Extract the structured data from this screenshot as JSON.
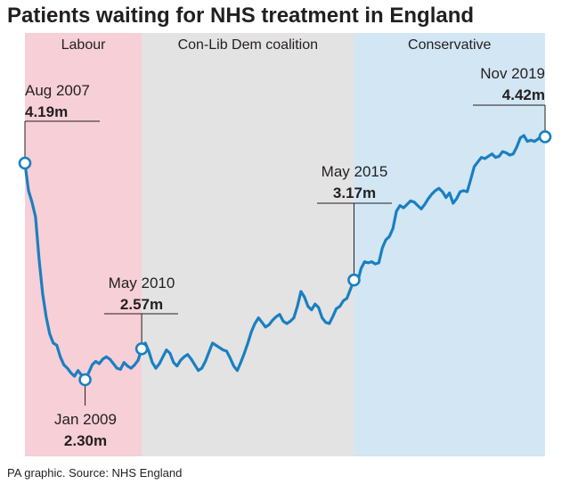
{
  "title": "Patients waiting for NHS treatment in England",
  "source": "PA graphic. Source: NHS England",
  "colors": {
    "line": "#1a7fc1",
    "text": "#231f20",
    "marker_fill": "#ffffff"
  },
  "chart_data": {
    "type": "line",
    "title": "Patients waiting for NHS treatment in England",
    "xlabel": "",
    "ylabel": "",
    "unit": "m",
    "x_range": [
      "2007-08",
      "2019-11"
    ],
    "ylim": [
      2.0,
      4.7
    ],
    "grid": false,
    "bands": [
      {
        "label": "Labour",
        "start": "2007-08",
        "end": "2010-05",
        "color": "#f7cfd6"
      },
      {
        "label": "Con-Lib Dem coalition",
        "start": "2010-05",
        "end": "2015-05",
        "color": "#e3e3e3"
      },
      {
        "label": "Conservative",
        "start": "2015-05",
        "end": "2019-11",
        "color": "#d2e6f4"
      }
    ],
    "annotations": [
      {
        "date": "Aug 2007",
        "value": "4.19m",
        "x": "2007-08",
        "y": 4.19
      },
      {
        "date": "Jan 2009",
        "value": "2.30m",
        "x": "2009-01",
        "y": 2.3
      },
      {
        "date": "May 2010",
        "value": "2.57m",
        "x": "2010-05",
        "y": 2.57
      },
      {
        "date": "May 2015",
        "value": "3.17m",
        "x": "2015-05",
        "y": 3.17
      },
      {
        "date": "Nov 2019",
        "value": "4.42m",
        "x": "2019-11",
        "y": 4.42
      }
    ],
    "series": [
      {
        "x": [
          "2007-08",
          "2007-09",
          "2007-10",
          "2007-11",
          "2007-12",
          "2008-01",
          "2008-02",
          "2008-03",
          "2008-04",
          "2008-05",
          "2008-06",
          "2008-07",
          "2008-08",
          "2008-09",
          "2008-10",
          "2008-11",
          "2008-12",
          "2009-01",
          "2009-02",
          "2009-03",
          "2009-04",
          "2009-05",
          "2009-06",
          "2009-07",
          "2009-08",
          "2009-09",
          "2009-10",
          "2009-11",
          "2009-12",
          "2010-01",
          "2010-02",
          "2010-03",
          "2010-04",
          "2010-05",
          "2010-06",
          "2010-07",
          "2010-08",
          "2010-09",
          "2010-10",
          "2010-11",
          "2010-12",
          "2011-01",
          "2011-02",
          "2011-03",
          "2011-04",
          "2011-05",
          "2011-06",
          "2011-07",
          "2011-08",
          "2011-09",
          "2011-10",
          "2011-11",
          "2011-12",
          "2012-01",
          "2012-02",
          "2012-03",
          "2012-04",
          "2012-05",
          "2012-06",
          "2012-07",
          "2012-08",
          "2012-09",
          "2012-10",
          "2012-11",
          "2012-12",
          "2013-01",
          "2013-02",
          "2013-03",
          "2013-04",
          "2013-05",
          "2013-06",
          "2013-07",
          "2013-08",
          "2013-09",
          "2013-10",
          "2013-11",
          "2013-12",
          "2014-01",
          "2014-02",
          "2014-03",
          "2014-04",
          "2014-05",
          "2014-06",
          "2014-07",
          "2014-08",
          "2014-09",
          "2014-10",
          "2014-11",
          "2014-12",
          "2015-01",
          "2015-02",
          "2015-03",
          "2015-04",
          "2015-05",
          "2015-06",
          "2015-07",
          "2015-08",
          "2015-09",
          "2015-10",
          "2015-11",
          "2015-12",
          "2016-01",
          "2016-02",
          "2016-03",
          "2016-04",
          "2016-05",
          "2016-06",
          "2016-07",
          "2016-08",
          "2016-09",
          "2016-10",
          "2016-11",
          "2016-12",
          "2017-01",
          "2017-02",
          "2017-03",
          "2017-04",
          "2017-05",
          "2017-06",
          "2017-07",
          "2017-08",
          "2017-09",
          "2017-10",
          "2017-11",
          "2017-12",
          "2018-01",
          "2018-02",
          "2018-03",
          "2018-04",
          "2018-05",
          "2018-06",
          "2018-07",
          "2018-08",
          "2018-09",
          "2018-10",
          "2018-11",
          "2018-12",
          "2019-01",
          "2019-02",
          "2019-03",
          "2019-04",
          "2019-05",
          "2019-06",
          "2019-07",
          "2019-08",
          "2019-09",
          "2019-10",
          "2019-11"
        ],
        "values": [
          4.19,
          3.95,
          3.85,
          3.72,
          3.35,
          3.05,
          2.85,
          2.7,
          2.62,
          2.6,
          2.5,
          2.43,
          2.4,
          2.36,
          2.33,
          2.38,
          2.34,
          2.3,
          2.36,
          2.43,
          2.46,
          2.44,
          2.48,
          2.5,
          2.48,
          2.44,
          2.4,
          2.39,
          2.45,
          2.42,
          2.4,
          2.43,
          2.47,
          2.57,
          2.62,
          2.55,
          2.45,
          2.4,
          2.44,
          2.5,
          2.56,
          2.53,
          2.45,
          2.42,
          2.47,
          2.5,
          2.52,
          2.48,
          2.43,
          2.38,
          2.4,
          2.46,
          2.54,
          2.62,
          2.6,
          2.58,
          2.56,
          2.55,
          2.49,
          2.42,
          2.38,
          2.45,
          2.53,
          2.62,
          2.72,
          2.79,
          2.84,
          2.8,
          2.76,
          2.78,
          2.82,
          2.85,
          2.87,
          2.81,
          2.79,
          2.81,
          2.84,
          2.94,
          3.07,
          3.02,
          2.94,
          2.91,
          2.96,
          2.93,
          2.84,
          2.8,
          2.79,
          2.85,
          2.92,
          2.94,
          2.99,
          3.01,
          3.09,
          3.17,
          3.15,
          3.27,
          3.33,
          3.32,
          3.33,
          3.31,
          3.32,
          3.45,
          3.52,
          3.55,
          3.62,
          3.77,
          3.82,
          3.8,
          3.83,
          3.86,
          3.85,
          3.82,
          3.79,
          3.83,
          3.88,
          3.92,
          3.95,
          3.97,
          3.94,
          3.89,
          3.93,
          3.84,
          3.88,
          3.94,
          3.95,
          3.94,
          4.05,
          4.16,
          4.2,
          4.24,
          4.23,
          4.25,
          4.27,
          4.24,
          4.25,
          4.29,
          4.28,
          4.26,
          4.27,
          4.33,
          4.41,
          4.43,
          4.38,
          4.39,
          4.38,
          4.4,
          4.43,
          4.42
        ]
      }
    ]
  }
}
